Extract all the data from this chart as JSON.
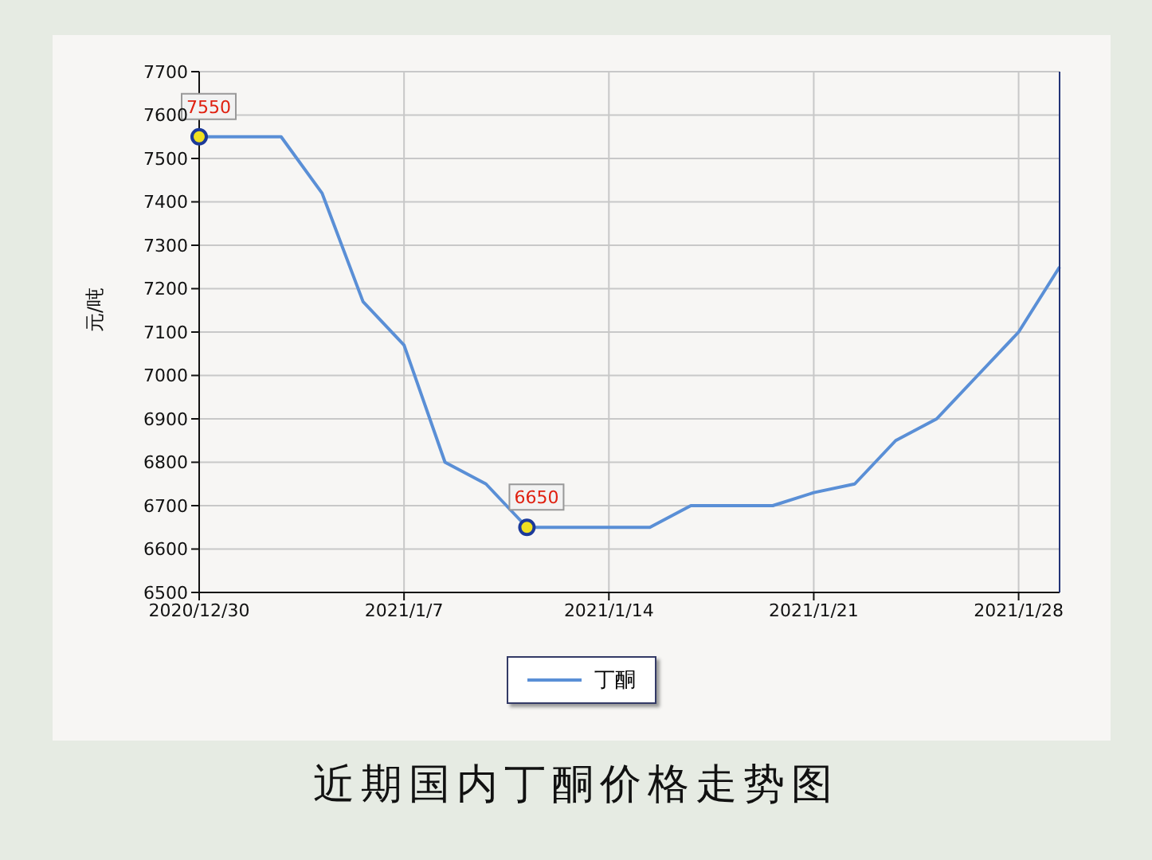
{
  "chart_data": {
    "type": "line",
    "title": "近期国内丁酮价格走势图",
    "ylabel": "元/吨",
    "categories": [
      "2020/12/30",
      null,
      null,
      null,
      null,
      "2021/1/7",
      null,
      null,
      null,
      null,
      "2021/1/14",
      null,
      null,
      null,
      null,
      "2021/1/21",
      null,
      null,
      null,
      null,
      "2021/1/28",
      null
    ],
    "series": [
      {
        "name": "丁酮",
        "color": "#5a8fd6",
        "values": [
          7550,
          7550,
          7550,
          7420,
          7170,
          7070,
          6800,
          6750,
          6650,
          6650,
          6650,
          6650,
          6700,
          6700,
          6700,
          6730,
          6750,
          6850,
          6900,
          7000,
          7100,
          7250
        ],
        "value_labels": [
          "7550",
          null,
          null,
          null,
          null,
          null,
          null,
          null,
          "6650",
          null,
          null,
          null,
          null,
          null,
          null,
          null,
          null,
          null,
          null,
          null,
          null,
          null
        ]
      }
    ],
    "ylim": [
      6500,
      7700
    ],
    "yticks": [
      6500,
      6600,
      6700,
      6800,
      6900,
      7000,
      7100,
      7200,
      7300,
      7400,
      7500,
      7600,
      7700
    ],
    "grid": true,
    "legend": "bottom",
    "marker": "none",
    "line_style": "solid"
  }
}
